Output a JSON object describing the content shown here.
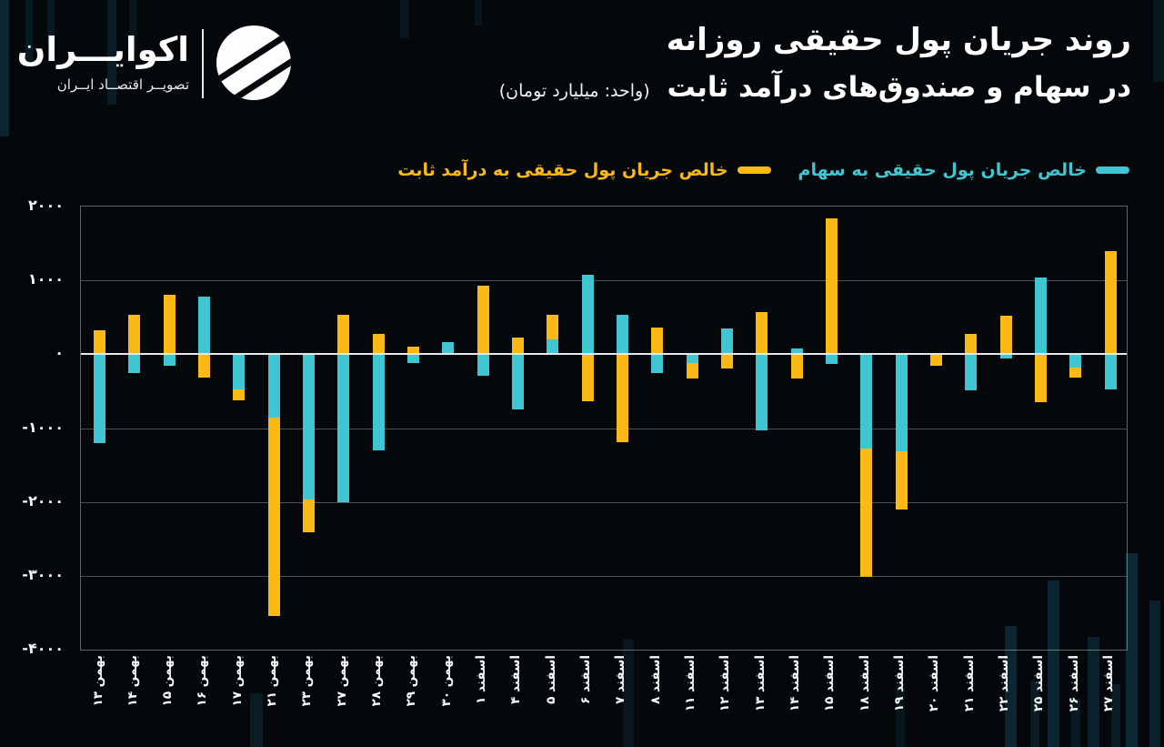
{
  "header": {
    "logo_name": "اکوایـــران",
    "logo_tagline": "تصویــر اقتصــاد ایــران",
    "title_line1": "روند جریان پول حقیقی روزانه",
    "title_line2": "در سهام و صندوق‌های درآمد ثابت",
    "title_unit": "(واحد: میلیارد تومان)"
  },
  "colors": {
    "background": "#04080b",
    "stocks_cyan": "#3fc6d2",
    "fixed_income_yellow": "#fcb813",
    "zero_line": "#e6e9e9",
    "grid_line": "#4a5054",
    "text": "#ffffff"
  },
  "legend": [
    {
      "label": "خالص جریان پول حقیقی به سهام",
      "color": "#3fc6d2"
    },
    {
      "label": "خالص جریان پول حقیقی به درآمد ثابت",
      "color": "#fcb813"
    }
  ],
  "chart_data": {
    "type": "bar",
    "title": "روند جریان پول حقیقی روزانه در سهام و صندوق‌های درآمد ثابت",
    "unit": "میلیارد تومان",
    "categories": [
      "بهمن ۱۳",
      "بهمن ۱۴",
      "بهمن ۱۵",
      "بهمن ۱۶",
      "بهمن ۱۷",
      "بهمن ۲۱",
      "بهمن ۲۳",
      "بهمن ۲۷",
      "بهمن ۲۸",
      "بهمن ۲۹",
      "بهمن ۳۰",
      "اسفند ۱",
      "اسفند ۴",
      "اسفند ۵",
      "اسفند ۶",
      "اسفند ۷",
      "اسفند ۸",
      "اسفند ۱۱",
      "اسفند ۱۲",
      "اسفند ۱۳",
      "اسفند ۱۴",
      "اسفند ۱۵",
      "اسفند ۱۸",
      "اسفند ۱۹",
      "اسفند ۲۰",
      "اسفند ۲۱",
      "اسفند ۲۲",
      "اسفند ۲۵",
      "اسفند ۲۶",
      "اسفند ۲۷"
    ],
    "series": [
      {
        "name": "خالص جریان پول حقیقی به سهام",
        "color": "#3fc6d2",
        "values": [
          -1200,
          -250,
          -150,
          780,
          -480,
          -860,
          -1970,
          -2000,
          -1300,
          -120,
          160,
          -290,
          -750,
          200,
          1080,
          530,
          -260,
          -120,
          350,
          -1030,
          80,
          -130,
          -1280,
          -1320,
          0,
          -490,
          -60,
          1040,
          -180,
          -480
        ]
      },
      {
        "name": "خالص جریان پول حقیقی به درآمد ثابت",
        "color": "#fcb813",
        "values": [
          320,
          540,
          810,
          -320,
          -620,
          -3550,
          -2410,
          530,
          280,
          100,
          0,
          930,
          220,
          530,
          -640,
          -1190,
          360,
          -330,
          -190,
          570,
          -330,
          1840,
          -3020,
          -2100,
          -160,
          270,
          520,
          -650,
          -320,
          1400
        ]
      }
    ],
    "ylim": [
      -4000,
      2000
    ],
    "ytick_step": 1000,
    "ytick_labels": [
      "۲۰۰۰",
      "۱۰۰۰",
      "۰",
      "-۱۰۰۰",
      "-۲۰۰۰",
      "-۳۰۰۰",
      "-۴۰۰۰"
    ],
    "grid": true,
    "legend_position": "top",
    "bar_layout": "overlay"
  }
}
